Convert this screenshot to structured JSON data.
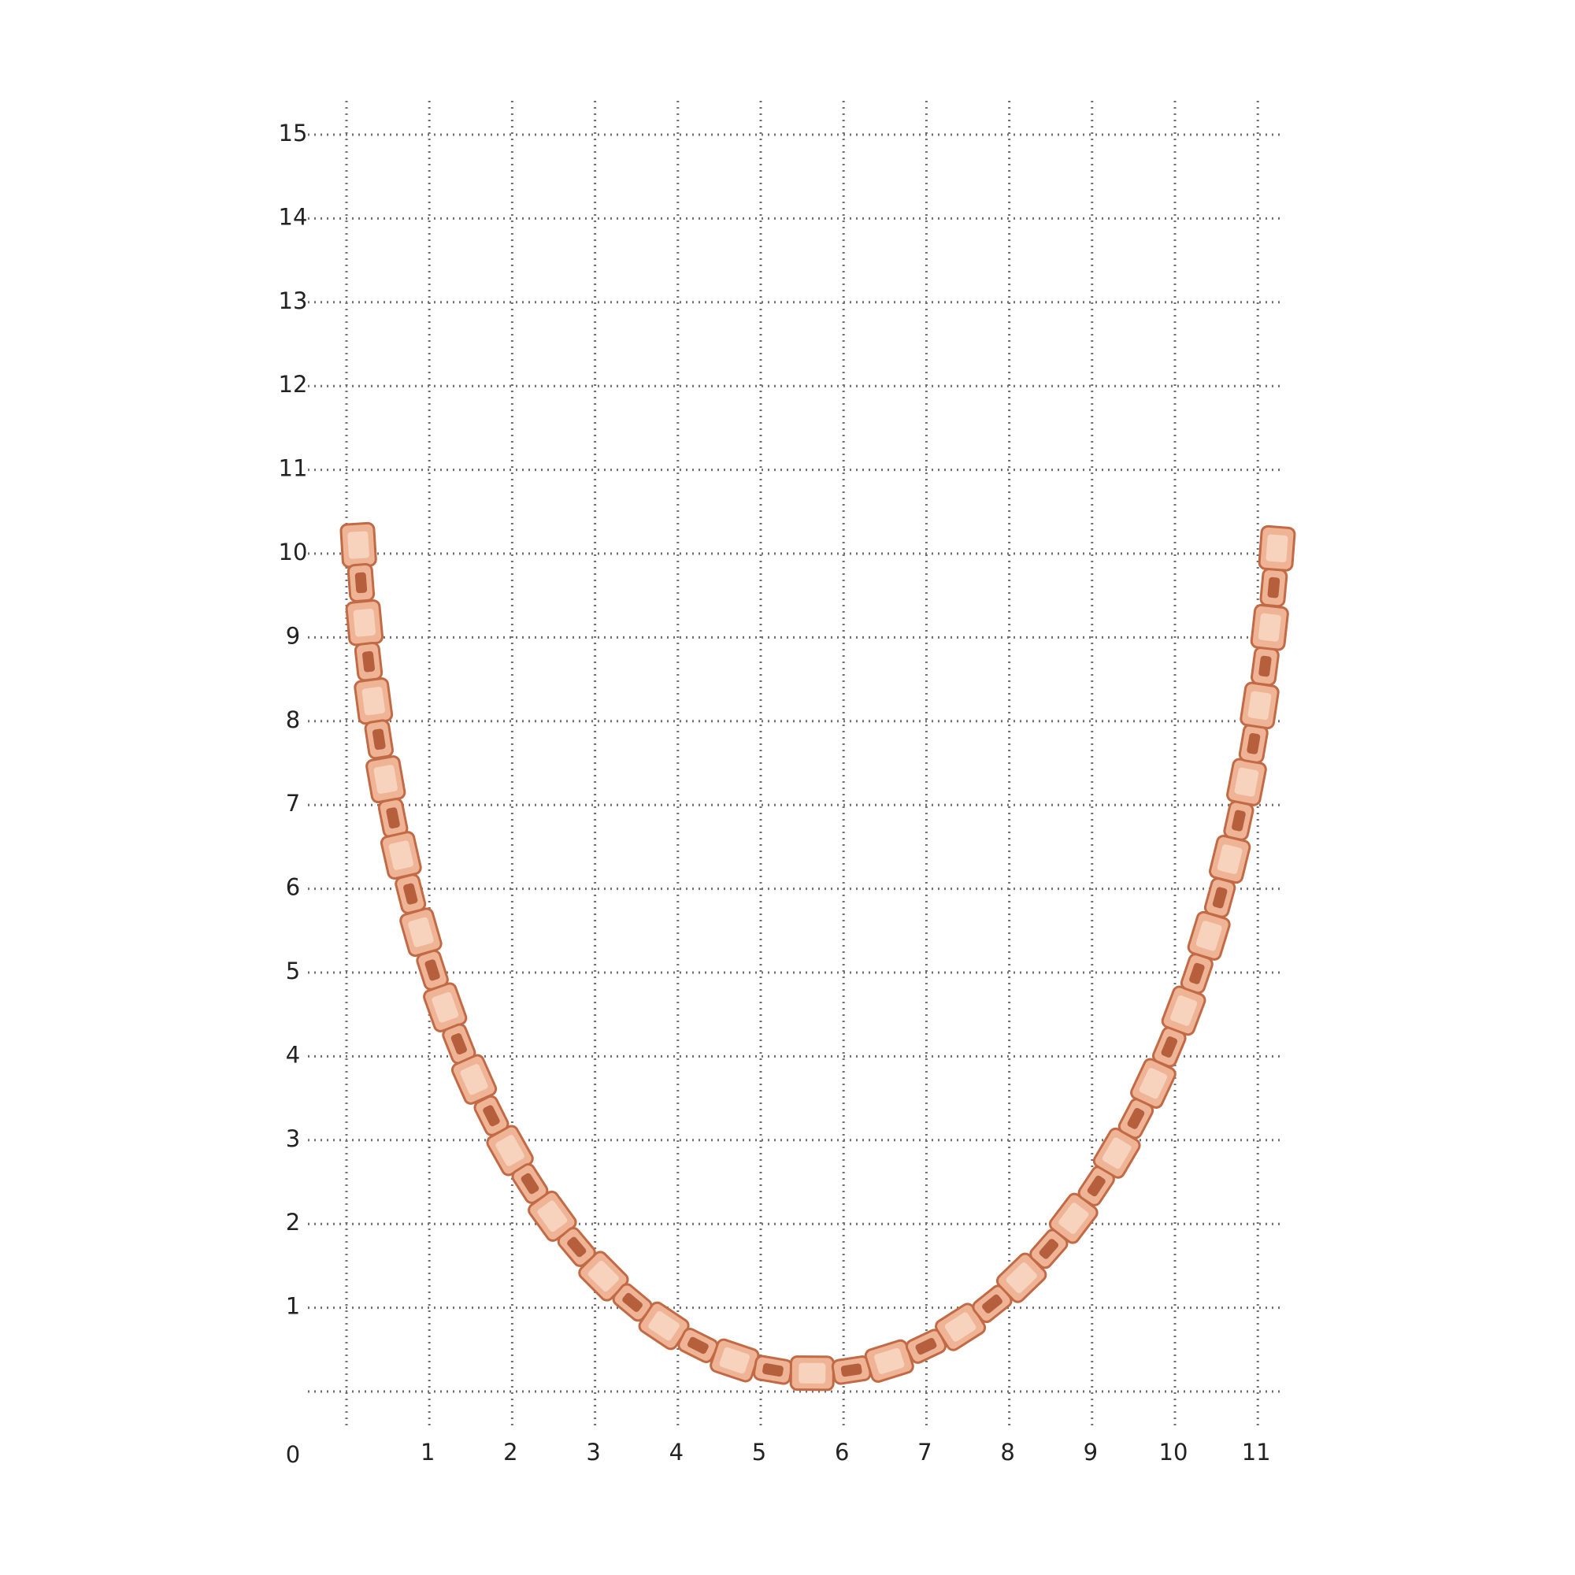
{
  "y_labels": [
    0,
    1,
    2,
    3,
    4,
    5,
    6,
    7,
    8,
    9,
    10,
    11,
    12,
    13,
    14,
    15
  ],
  "x_labels": [
    1,
    2,
    3,
    4,
    5,
    6,
    7,
    8,
    9,
    10,
    11
  ]
}
